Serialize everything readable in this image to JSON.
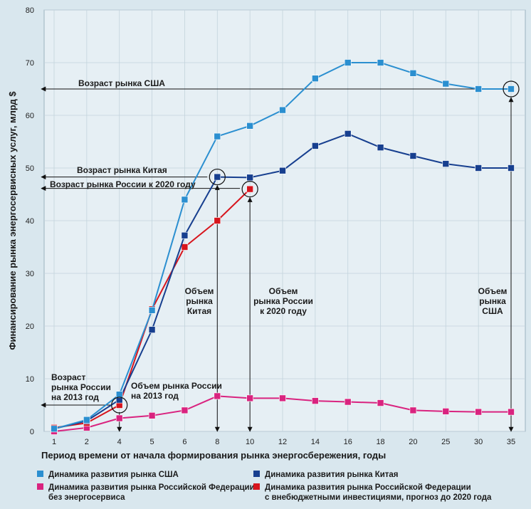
{
  "chart_data": {
    "type": "line",
    "xlabel": "Период времени от начала формирования рынка энергосбережения, годы",
    "ylabel": "Финансирование рынка энергосервисных услуг, млрд $",
    "ylim": [
      0,
      80
    ],
    "yticks": [
      0,
      10,
      20,
      30,
      40,
      50,
      60,
      70,
      80
    ],
    "categories": [
      "1",
      "2",
      "4",
      "5",
      "6",
      "8",
      "10",
      "12",
      "14",
      "16",
      "18",
      "20",
      "25",
      "30",
      "35"
    ],
    "grid": true,
    "legend_position": "bottom",
    "series": [
      {
        "name": "Динамика развития рынка США",
        "color": "#2b8fd0",
        "values": [
          0.5,
          2.2,
          7,
          23,
          44,
          56,
          58,
          61,
          67,
          70,
          70,
          68,
          66,
          65,
          65
        ]
      },
      {
        "name": "Динамика развития рынка Китая",
        "color": "#173f8f",
        "values": [
          0.5,
          2,
          6,
          19.3,
          37.2,
          48.3,
          48.2,
          49.5,
          54.2,
          56.5,
          53.9,
          52.3,
          50.8,
          50,
          50
        ]
      },
      {
        "name": "Динамика развития рынка Российской Федерации без энергосервиса",
        "color": "#d9237f",
        "values": [
          0,
          0.7,
          2.5,
          3,
          4,
          6.7,
          6.3,
          6.3,
          5.8,
          5.6,
          5.4,
          4,
          3.8,
          3.7,
          3.7
        ]
      },
      {
        "name": "Динамика развития рынка Российской Федерации с внебюджетными инвестициями, прогноз до 2020 года",
        "color": "#d7151d",
        "values": [
          0.7,
          1.6,
          5,
          23.2,
          35,
          40,
          46,
          null,
          null,
          null,
          null,
          null,
          null,
          null,
          null
        ]
      }
    ],
    "annotations": {
      "usa_age": "Возраст рынка США",
      "china_age": "Возраст рынка Китая",
      "russia_age_2020": "Возраст рынка России к 2020 году",
      "russia_age_2013": [
        "Возраст",
        "рынка России",
        "на 2013 год"
      ],
      "russia_volume_2013": [
        "Объем рынка России",
        "на 2013 год"
      ],
      "china_volume": [
        "Объем",
        "рынка",
        "Китая"
      ],
      "russia_volume_2020": [
        "Объем",
        "рынка России",
        "к 2020 году"
      ],
      "usa_volume": [
        "Объем",
        "рынка",
        "США"
      ]
    },
    "legend_lines": [
      [
        "Динамика развития рынка США"
      ],
      [
        "Динамика развития рынка Китая"
      ],
      [
        "Динамика развития рынка Российской Федерации",
        "без энергосервиса"
      ],
      [
        "Динамика развития рынка Российской Федерации",
        "с внебюджетными инвестициями, прогноз до 2020 года"
      ]
    ]
  }
}
